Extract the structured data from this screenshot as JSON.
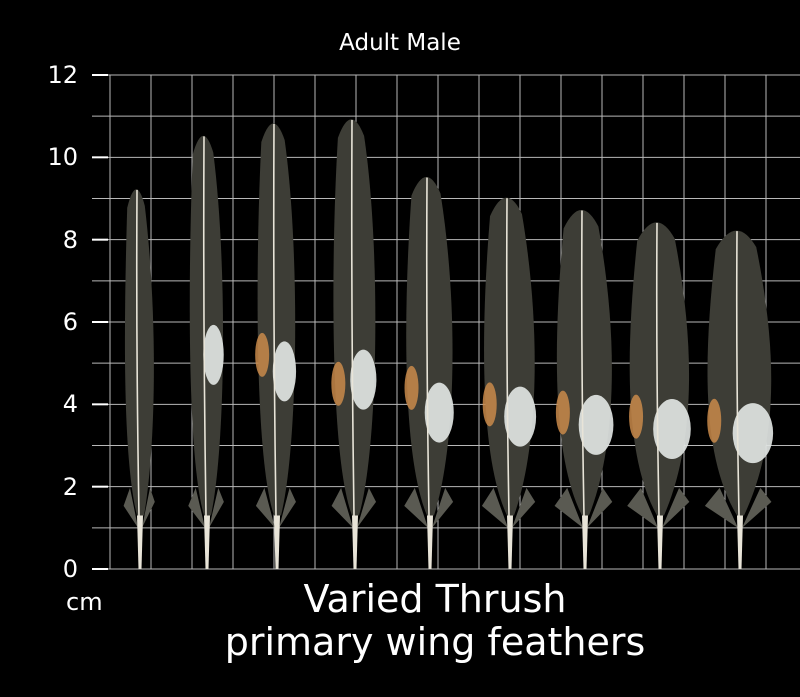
{
  "subtitle": "Adult Male",
  "unit_label": "cm",
  "title_line1": "Varied Thrush",
  "title_line2": "primary wing feathers",
  "y_axis": {
    "min": 0,
    "max": 12,
    "ticks": [
      "0",
      "2",
      "4",
      "6",
      "8",
      "10",
      "12"
    ]
  },
  "grid": true,
  "colors": {
    "background": "#000000",
    "grid": "#b8b8b8",
    "vane": "#3d3d36",
    "rachis": "#e8e4d8",
    "white_patch": "#dfe4e2",
    "orange_patch": "#c98a4a"
  },
  "feathers": [
    {
      "length_cm": 9.5,
      "patch_cm": null,
      "orange_cm": null
    },
    {
      "length_cm": 10.8,
      "patch_cm": 5.2,
      "orange_cm": null
    },
    {
      "length_cm": 11.1,
      "patch_cm": 4.8,
      "orange_cm": 5.2
    },
    {
      "length_cm": 11.2,
      "patch_cm": 4.6,
      "orange_cm": 4.5
    },
    {
      "length_cm": 9.8,
      "patch_cm": 3.8,
      "orange_cm": 4.4
    },
    {
      "length_cm": 9.3,
      "patch_cm": 3.7,
      "orange_cm": 4.0
    },
    {
      "length_cm": 9.0,
      "patch_cm": 3.5,
      "orange_cm": 3.8
    },
    {
      "length_cm": 8.7,
      "patch_cm": 3.4,
      "orange_cm": 3.7
    },
    {
      "length_cm": 8.5,
      "patch_cm": 3.3,
      "orange_cm": 3.6
    }
  ]
}
